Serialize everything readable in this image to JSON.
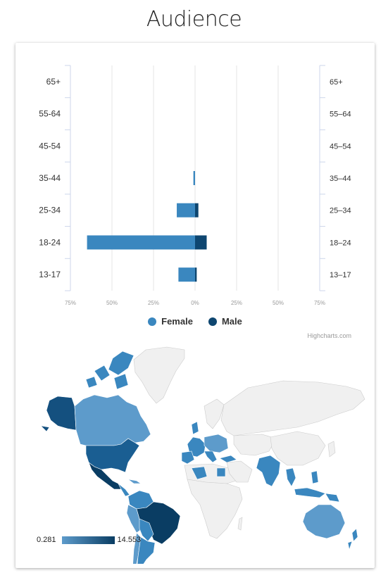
{
  "page": {
    "title": "Audience"
  },
  "colors": {
    "female": "#3a87bf",
    "male": "#0e4670",
    "land": "#f0f0f0",
    "border": "#cccccc",
    "low": "#5d9bcb",
    "high": "#0a3d63"
  },
  "legend": {
    "female_label": "Female",
    "male_label": "Male"
  },
  "credits": "Highcharts.com",
  "chart_data": [
    {
      "type": "bar",
      "subtype": "population-pyramid",
      "categories": [
        "65+",
        "55-64",
        "45-54",
        "35-44",
        "25-34",
        "18-24",
        "13-17"
      ],
      "right_axis_labels": [
        "65+",
        "55–64",
        "45–54",
        "35–44",
        "25–34",
        "18–24",
        "13–17"
      ],
      "x_ticks": [
        "75%",
        "50%",
        "25%",
        "0%",
        "25%",
        "50%",
        "75%"
      ],
      "xlim": [
        -75,
        75
      ],
      "grid": true,
      "legend_position": "bottom-center",
      "series": [
        {
          "name": "Female",
          "values": [
            0,
            0,
            0,
            1,
            11,
            65,
            10
          ]
        },
        {
          "name": "Male",
          "values": [
            0,
            0,
            0,
            0,
            2,
            7,
            1
          ]
        }
      ]
    },
    {
      "type": "map",
      "subtype": "choropleth-world",
      "colorbar_min": "0.281",
      "colorbar_max": "14.553"
    }
  ]
}
